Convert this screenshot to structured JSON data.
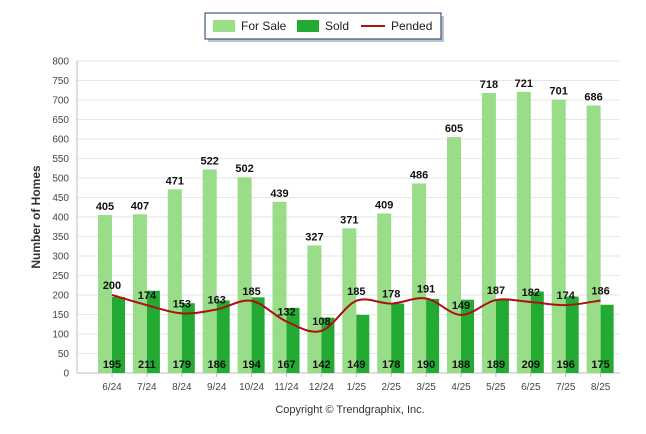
{
  "chart_data": {
    "type": "bar",
    "categories": [
      "6/24",
      "7/24",
      "8/24",
      "9/24",
      "10/24",
      "11/24",
      "12/24",
      "1/25",
      "2/25",
      "3/25",
      "4/25",
      "5/25",
      "6/25",
      "7/25",
      "8/25"
    ],
    "series": [
      {
        "name": "For Sale",
        "kind": "bar",
        "color": "#99dd88",
        "values": [
          405,
          407,
          471,
          522,
          502,
          439,
          327,
          371,
          409,
          486,
          605,
          718,
          721,
          701,
          686
        ]
      },
      {
        "name": "Sold",
        "kind": "bar",
        "color": "#22aa33",
        "values": [
          195,
          211,
          179,
          186,
          194,
          167,
          142,
          149,
          178,
          190,
          188,
          189,
          209,
          196,
          175
        ]
      },
      {
        "name": "Pended",
        "kind": "line",
        "color": "#aa1111",
        "values": [
          200,
          174,
          153,
          163,
          185,
          132,
          108,
          185,
          178,
          191,
          149,
          187,
          182,
          174,
          186
        ]
      }
    ],
    "ylabel": "Number of Homes",
    "xlabel": "",
    "ylim": [
      0,
      800
    ],
    "yticks": [
      0,
      50,
      100,
      150,
      200,
      250,
      300,
      350,
      400,
      450,
      500,
      550,
      600,
      650,
      700,
      750,
      800
    ],
    "grid": true,
    "legend_position": "top-center"
  },
  "legend": {
    "for_sale": "For Sale",
    "sold": "Sold",
    "pended": "Pended"
  },
  "copyright": "Copyright © Trendgraphix, Inc."
}
